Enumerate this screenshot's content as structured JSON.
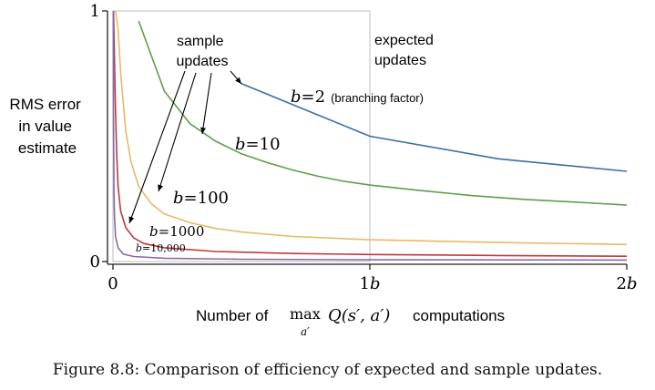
{
  "chart_data": {
    "type": "line",
    "title": "",
    "ylabel": "RMS error in value estimate",
    "ylabel_lines": [
      "RMS error",
      "in value",
      "estimate"
    ],
    "xlabel": {
      "prefix": "Number of",
      "max_text": "max",
      "max_sub": "a′",
      "func": "Q(s′, a′)",
      "suffix": "computations"
    },
    "xlim": [
      0,
      2
    ],
    "ylim": [
      0,
      1
    ],
    "x_ticks": [
      {
        "value": 0,
        "label": "0"
      },
      {
        "value": 1,
        "label": "1b"
      },
      {
        "value": 2,
        "label": "2b"
      }
    ],
    "y_ticks": [
      {
        "value": 0,
        "label": "0"
      },
      {
        "value": 1,
        "label": "1"
      }
    ],
    "expected_update_box": {
      "x": [
        0,
        1
      ],
      "y": [
        0,
        1
      ]
    },
    "series": [
      {
        "name": "b=2",
        "color": "#3a6ea5",
        "points": [
          [
            0.5,
            0.71
          ],
          [
            1.0,
            0.5
          ],
          [
            1.5,
            0.41
          ],
          [
            2.0,
            0.36
          ]
        ]
      },
      {
        "name": "b=10",
        "color": "#5d9e4a",
        "points": [
          [
            0.1,
            0.96
          ],
          [
            0.2,
            0.68
          ],
          [
            0.3,
            0.55
          ],
          [
            0.4,
            0.48
          ],
          [
            0.5,
            0.43
          ],
          [
            0.6,
            0.395
          ],
          [
            0.7,
            0.365
          ],
          [
            0.8,
            0.34
          ],
          [
            0.9,
            0.32
          ],
          [
            1.0,
            0.305
          ],
          [
            1.2,
            0.283
          ],
          [
            1.4,
            0.263
          ],
          [
            1.6,
            0.248
          ],
          [
            1.8,
            0.237
          ],
          [
            2.0,
            0.225
          ]
        ]
      },
      {
        "name": "b=100",
        "color": "#e7b968",
        "points": [
          [
            0.01,
            1.0
          ],
          [
            0.02,
            0.93
          ],
          [
            0.03,
            0.75
          ],
          [
            0.05,
            0.52
          ],
          [
            0.07,
            0.4
          ],
          [
            0.1,
            0.3
          ],
          [
            0.15,
            0.23
          ],
          [
            0.2,
            0.19
          ],
          [
            0.3,
            0.155
          ],
          [
            0.4,
            0.132
          ],
          [
            0.5,
            0.118
          ],
          [
            0.7,
            0.1
          ],
          [
            1.0,
            0.087
          ],
          [
            1.5,
            0.076
          ],
          [
            2.0,
            0.068
          ]
        ]
      },
      {
        "name": "b=1000",
        "color": "#c0393b",
        "points": [
          [
            0.002,
            1.0
          ],
          [
            0.005,
            0.86
          ],
          [
            0.01,
            0.6
          ],
          [
            0.015,
            0.42
          ],
          [
            0.02,
            0.3
          ],
          [
            0.03,
            0.2
          ],
          [
            0.05,
            0.135
          ],
          [
            0.08,
            0.095
          ],
          [
            0.12,
            0.072
          ],
          [
            0.2,
            0.055
          ],
          [
            0.4,
            0.04
          ],
          [
            0.7,
            0.032
          ],
          [
            1.0,
            0.028
          ],
          [
            1.5,
            0.024
          ],
          [
            2.0,
            0.021
          ]
        ]
      },
      {
        "name": "b=10,000",
        "color": "#8a6aa6",
        "points": [
          [
            0.001,
            1.0
          ],
          [
            0.002,
            0.55
          ],
          [
            0.004,
            0.28
          ],
          [
            0.006,
            0.18
          ],
          [
            0.01,
            0.1
          ],
          [
            0.02,
            0.055
          ],
          [
            0.04,
            0.03
          ],
          [
            0.08,
            0.02
          ],
          [
            0.2,
            0.013
          ],
          [
            0.5,
            0.009
          ],
          [
            1.0,
            0.007
          ],
          [
            2.0,
            0.006
          ]
        ]
      }
    ],
    "annotations": {
      "expected_label": [
        "expected",
        "updates"
      ],
      "sample_label": [
        "sample",
        "updates"
      ],
      "b2_label": {
        "b": "b",
        "eq": "=",
        "val": "2",
        "note": "(branching factor)"
      },
      "b10_label": {
        "b": "b",
        "eq": "=",
        "val": "10"
      },
      "b100_label": {
        "b": "b",
        "eq": "=",
        "val": "100"
      },
      "b1000_label": {
        "b": "b",
        "eq": "=",
        "val": "1000"
      },
      "b10000_label": {
        "b": "b",
        "eq": "=",
        "val": "10,000"
      }
    }
  },
  "caption": "Figure 8.8: Comparison of efficiency of expected and sample updates."
}
